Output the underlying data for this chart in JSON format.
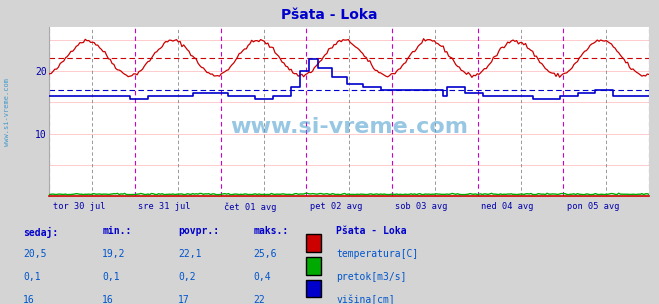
{
  "title": "Pšata - Loka",
  "title_color": "#0000cc",
  "bg_color": "#d4d4d4",
  "plot_bg_color": "#ffffff",
  "xlabel_ticks": [
    "tor 30 jul",
    "sre 31 jul",
    "čet 01 avg",
    "pet 02 avg",
    "sob 03 avg",
    "ned 04 avg",
    "pon 05 avg"
  ],
  "ylim": [
    0,
    27
  ],
  "n_points": 336,
  "temp_color": "#cc0000",
  "pretok_color": "#00aa00",
  "visina_color": "#0000cc",
  "temp_avg_line": 22.1,
  "visina_avg_line": 17.0,
  "watermark": "www.si-vreme.com",
  "watermark_color": "#4499cc",
  "left_label": "www.si-vreme.com",
  "left_label_color": "#4499cc",
  "vline_color_day": "#cc00cc",
  "vline_color_noon": "#888888",
  "hgrid_color": "#ffcccc",
  "tick_color": "#0000aa",
  "table_header_color": "#0000cc",
  "table_value_color": "#0055cc",
  "spine_bottom_color": "#cc0000",
  "headers": [
    "sedaj:",
    "min.:",
    "povpr.:",
    "maks.:"
  ],
  "legend_title": "Pšata - Loka",
  "rows": [
    [
      "20,5",
      "19,2",
      "22,1",
      "25,6",
      "temperatura[C]",
      "#cc0000"
    ],
    [
      "0,1",
      "0,1",
      "0,2",
      "0,4",
      "pretok[m3/s]",
      "#00aa00"
    ],
    [
      "16",
      "16",
      "17",
      "22",
      "višina[cm]",
      "#0000cc"
    ]
  ]
}
